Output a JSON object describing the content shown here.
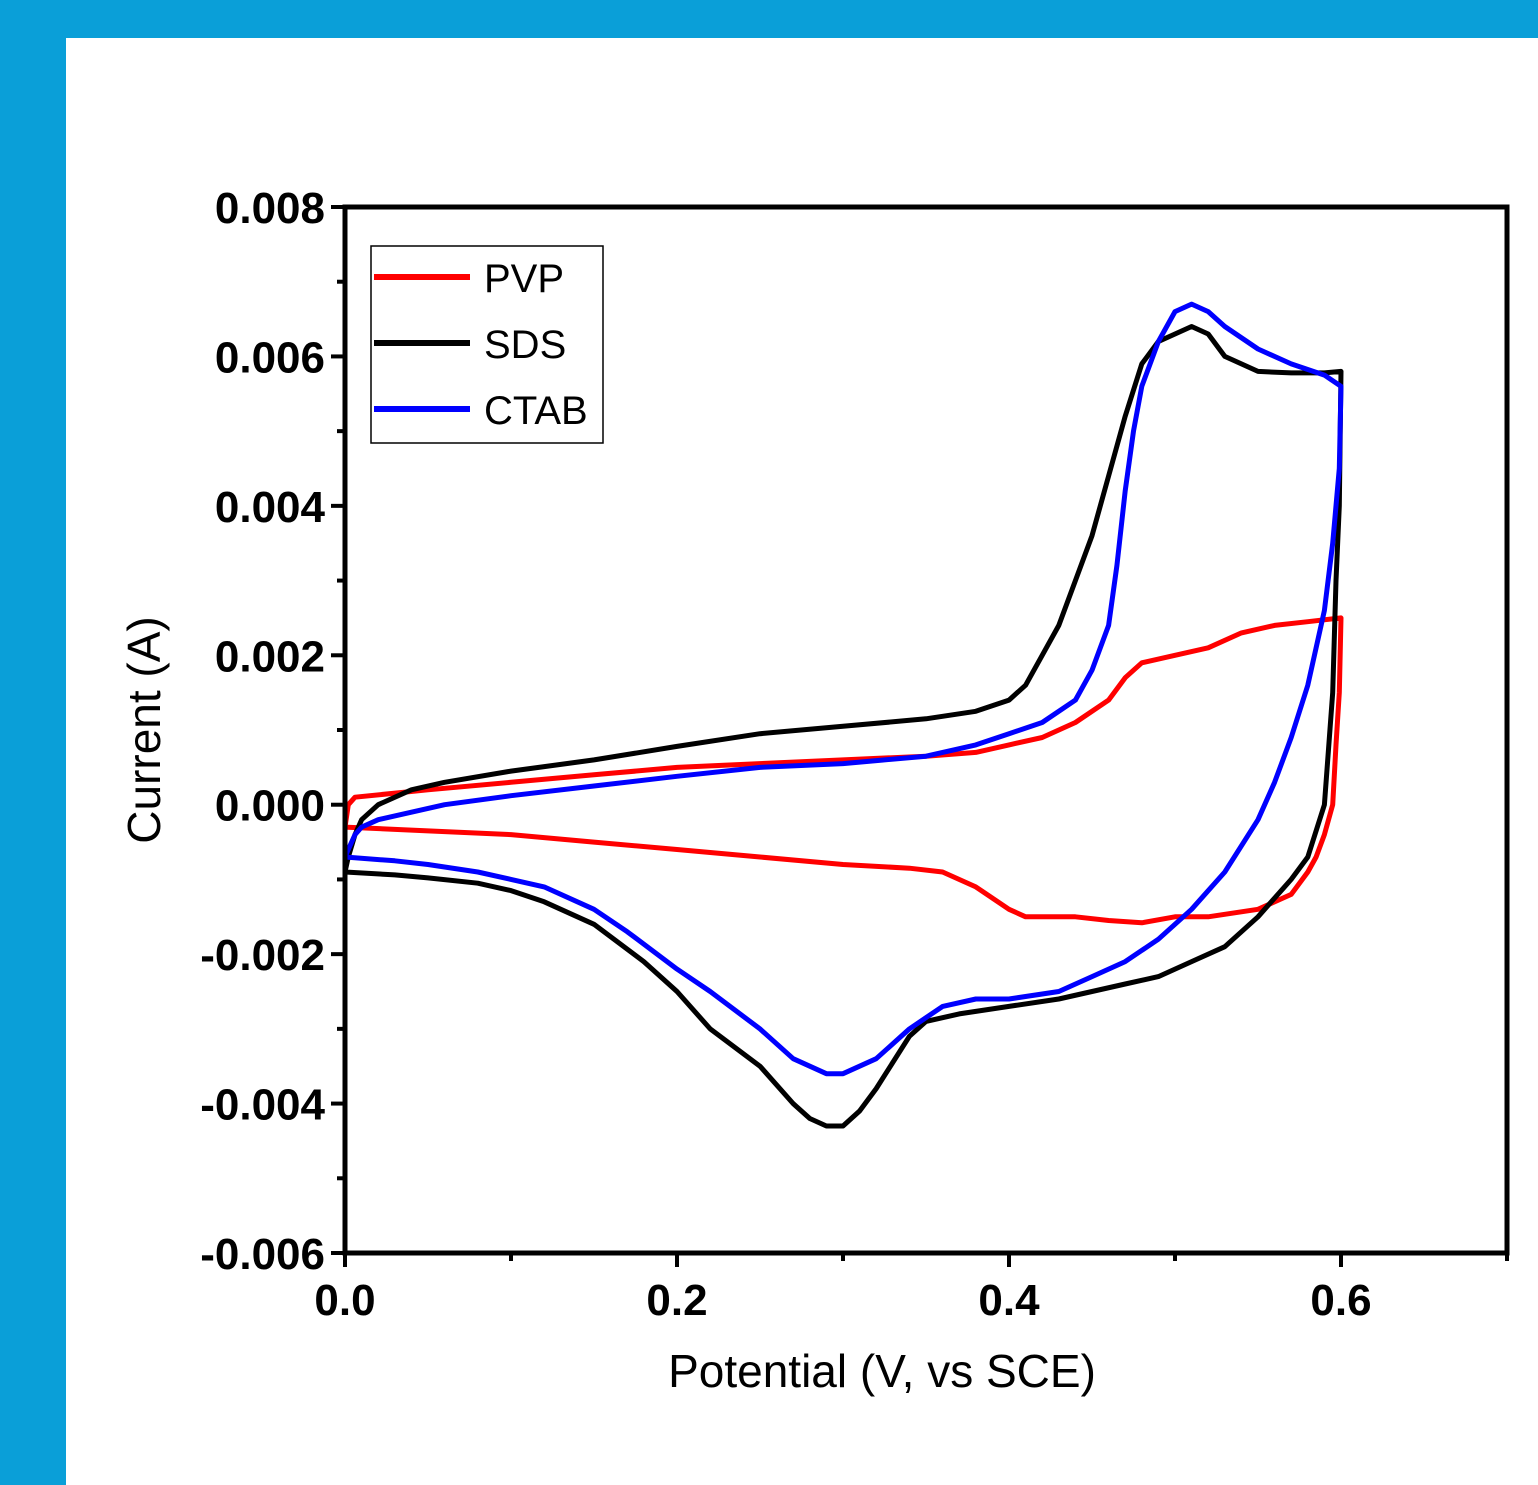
{
  "colors": {
    "background": "#0a9fd8",
    "panel": "#ffffff"
  },
  "chart_data": {
    "type": "line",
    "title": "",
    "xlabel": "Potential (V, vs SCE)",
    "ylabel": "Current (A)",
    "xlim": [
      0.0,
      0.7
    ],
    "ylim": [
      -0.006,
      0.008
    ],
    "x_ticks": [
      "0.0",
      "0.2",
      "0.4",
      "0.6"
    ],
    "y_ticks": [
      "0.008",
      "0.006",
      "0.004",
      "0.002",
      "0.000",
      "-0.002",
      "-0.004",
      "-0.006"
    ],
    "grid": false,
    "legend_position": "top-left",
    "series": [
      {
        "name": "PVP",
        "color": "#ff0000",
        "points": [
          [
            0.0,
            -0.0003
          ],
          [
            0.002,
            0.0
          ],
          [
            0.006,
            0.0001
          ],
          [
            0.05,
            0.0002
          ],
          [
            0.1,
            0.0003
          ],
          [
            0.15,
            0.0004
          ],
          [
            0.2,
            0.0005
          ],
          [
            0.25,
            0.00055
          ],
          [
            0.3,
            0.0006
          ],
          [
            0.35,
            0.00065
          ],
          [
            0.38,
            0.0007
          ],
          [
            0.4,
            0.0008
          ],
          [
            0.42,
            0.0009
          ],
          [
            0.44,
            0.0011
          ],
          [
            0.46,
            0.0014
          ],
          [
            0.47,
            0.0017
          ],
          [
            0.48,
            0.0019
          ],
          [
            0.5,
            0.002
          ],
          [
            0.52,
            0.0021
          ],
          [
            0.54,
            0.0023
          ],
          [
            0.56,
            0.0024
          ],
          [
            0.58,
            0.00245
          ],
          [
            0.6,
            0.0025
          ],
          [
            0.6,
            0.0025
          ],
          [
            0.599,
            0.0015
          ],
          [
            0.597,
            0.0008
          ],
          [
            0.595,
            0.0
          ],
          [
            0.59,
            -0.0004
          ],
          [
            0.585,
            -0.0007
          ],
          [
            0.58,
            -0.0009
          ],
          [
            0.57,
            -0.0012
          ],
          [
            0.55,
            -0.0014
          ],
          [
            0.52,
            -0.0015
          ],
          [
            0.5,
            -0.0015
          ],
          [
            0.48,
            -0.00158
          ],
          [
            0.46,
            -0.00155
          ],
          [
            0.44,
            -0.0015
          ],
          [
            0.42,
            -0.0015
          ],
          [
            0.41,
            -0.0015
          ],
          [
            0.4,
            -0.0014
          ],
          [
            0.38,
            -0.0011
          ],
          [
            0.36,
            -0.0009
          ],
          [
            0.34,
            -0.00085
          ],
          [
            0.3,
            -0.0008
          ],
          [
            0.25,
            -0.0007
          ],
          [
            0.2,
            -0.0006
          ],
          [
            0.15,
            -0.0005
          ],
          [
            0.1,
            -0.0004
          ],
          [
            0.05,
            -0.00035
          ],
          [
            0.0,
            -0.0003
          ]
        ]
      },
      {
        "name": "SDS",
        "color": "#000000",
        "points": [
          [
            0.0,
            -0.0009
          ],
          [
            0.002,
            -0.0007
          ],
          [
            0.006,
            -0.0004
          ],
          [
            0.01,
            -0.0002
          ],
          [
            0.02,
            0.0
          ],
          [
            0.04,
            0.0002
          ],
          [
            0.06,
            0.0003
          ],
          [
            0.1,
            0.00045
          ],
          [
            0.15,
            0.0006
          ],
          [
            0.2,
            0.00078
          ],
          [
            0.25,
            0.00095
          ],
          [
            0.3,
            0.00105
          ],
          [
            0.35,
            0.00115
          ],
          [
            0.38,
            0.00125
          ],
          [
            0.4,
            0.0014
          ],
          [
            0.41,
            0.0016
          ],
          [
            0.42,
            0.002
          ],
          [
            0.43,
            0.0024
          ],
          [
            0.44,
            0.003
          ],
          [
            0.45,
            0.0036
          ],
          [
            0.46,
            0.0044
          ],
          [
            0.47,
            0.0052
          ],
          [
            0.48,
            0.0059
          ],
          [
            0.49,
            0.0062
          ],
          [
            0.5,
            0.0063
          ],
          [
            0.51,
            0.0064
          ],
          [
            0.52,
            0.0063
          ],
          [
            0.53,
            0.006
          ],
          [
            0.55,
            0.0058
          ],
          [
            0.57,
            0.00578
          ],
          [
            0.59,
            0.00578
          ],
          [
            0.6,
            0.0058
          ],
          [
            0.6,
            0.0058
          ],
          [
            0.599,
            0.004
          ],
          [
            0.597,
            0.003
          ],
          [
            0.595,
            0.0015
          ],
          [
            0.59,
            0.0
          ],
          [
            0.58,
            -0.0007
          ],
          [
            0.57,
            -0.001
          ],
          [
            0.55,
            -0.0015
          ],
          [
            0.53,
            -0.0019
          ],
          [
            0.51,
            -0.0021
          ],
          [
            0.49,
            -0.0023
          ],
          [
            0.47,
            -0.0024
          ],
          [
            0.45,
            -0.0025
          ],
          [
            0.43,
            -0.0026
          ],
          [
            0.4,
            -0.0027
          ],
          [
            0.37,
            -0.0028
          ],
          [
            0.35,
            -0.0029
          ],
          [
            0.34,
            -0.0031
          ],
          [
            0.32,
            -0.0038
          ],
          [
            0.31,
            -0.0041
          ],
          [
            0.3,
            -0.0043
          ],
          [
            0.29,
            -0.0043
          ],
          [
            0.28,
            -0.0042
          ],
          [
            0.27,
            -0.004
          ],
          [
            0.25,
            -0.0035
          ],
          [
            0.22,
            -0.003
          ],
          [
            0.2,
            -0.0025
          ],
          [
            0.18,
            -0.0021
          ],
          [
            0.15,
            -0.0016
          ],
          [
            0.12,
            -0.0013
          ],
          [
            0.1,
            -0.00115
          ],
          [
            0.08,
            -0.00105
          ],
          [
            0.05,
            -0.00098
          ],
          [
            0.03,
            -0.00094
          ],
          [
            0.0,
            -0.0009
          ]
        ]
      },
      {
        "name": "CTAB",
        "color": "#0000ff",
        "points": [
          [
            0.0,
            -0.0007
          ],
          [
            0.002,
            -0.0006
          ],
          [
            0.006,
            -0.0004
          ],
          [
            0.01,
            -0.0003
          ],
          [
            0.02,
            -0.0002
          ],
          [
            0.04,
            -0.0001
          ],
          [
            0.06,
            0.0
          ],
          [
            0.1,
            0.00012
          ],
          [
            0.15,
            0.00025
          ],
          [
            0.2,
            0.00038
          ],
          [
            0.25,
            0.0005
          ],
          [
            0.3,
            0.00055
          ],
          [
            0.35,
            0.00065
          ],
          [
            0.38,
            0.0008
          ],
          [
            0.4,
            0.00095
          ],
          [
            0.42,
            0.0011
          ],
          [
            0.44,
            0.0014
          ],
          [
            0.45,
            0.0018
          ],
          [
            0.46,
            0.0024
          ],
          [
            0.465,
            0.0032
          ],
          [
            0.47,
            0.0042
          ],
          [
            0.475,
            0.005
          ],
          [
            0.48,
            0.0056
          ],
          [
            0.49,
            0.0062
          ],
          [
            0.5,
            0.0066
          ],
          [
            0.51,
            0.0067
          ],
          [
            0.52,
            0.0066
          ],
          [
            0.53,
            0.0064
          ],
          [
            0.55,
            0.0061
          ],
          [
            0.57,
            0.0059
          ],
          [
            0.59,
            0.00575
          ],
          [
            0.6,
            0.0056
          ],
          [
            0.6,
            0.0056
          ],
          [
            0.599,
            0.0045
          ],
          [
            0.595,
            0.0035
          ],
          [
            0.59,
            0.0026
          ],
          [
            0.58,
            0.0016
          ],
          [
            0.57,
            0.0009
          ],
          [
            0.56,
            0.0003
          ],
          [
            0.55,
            -0.0002
          ],
          [
            0.53,
            -0.0009
          ],
          [
            0.51,
            -0.0014
          ],
          [
            0.49,
            -0.0018
          ],
          [
            0.47,
            -0.0021
          ],
          [
            0.45,
            -0.0023
          ],
          [
            0.43,
            -0.0025
          ],
          [
            0.4,
            -0.0026
          ],
          [
            0.38,
            -0.0026
          ],
          [
            0.36,
            -0.0027
          ],
          [
            0.34,
            -0.003
          ],
          [
            0.32,
            -0.0034
          ],
          [
            0.3,
            -0.0036
          ],
          [
            0.29,
            -0.0036
          ],
          [
            0.27,
            -0.0034
          ],
          [
            0.25,
            -0.003
          ],
          [
            0.22,
            -0.0025
          ],
          [
            0.2,
            -0.0022
          ],
          [
            0.17,
            -0.0017
          ],
          [
            0.15,
            -0.0014
          ],
          [
            0.12,
            -0.0011
          ],
          [
            0.1,
            -0.001
          ],
          [
            0.08,
            -0.0009
          ],
          [
            0.05,
            -0.0008
          ],
          [
            0.03,
            -0.00075
          ],
          [
            0.0,
            -0.0007
          ]
        ]
      }
    ]
  }
}
